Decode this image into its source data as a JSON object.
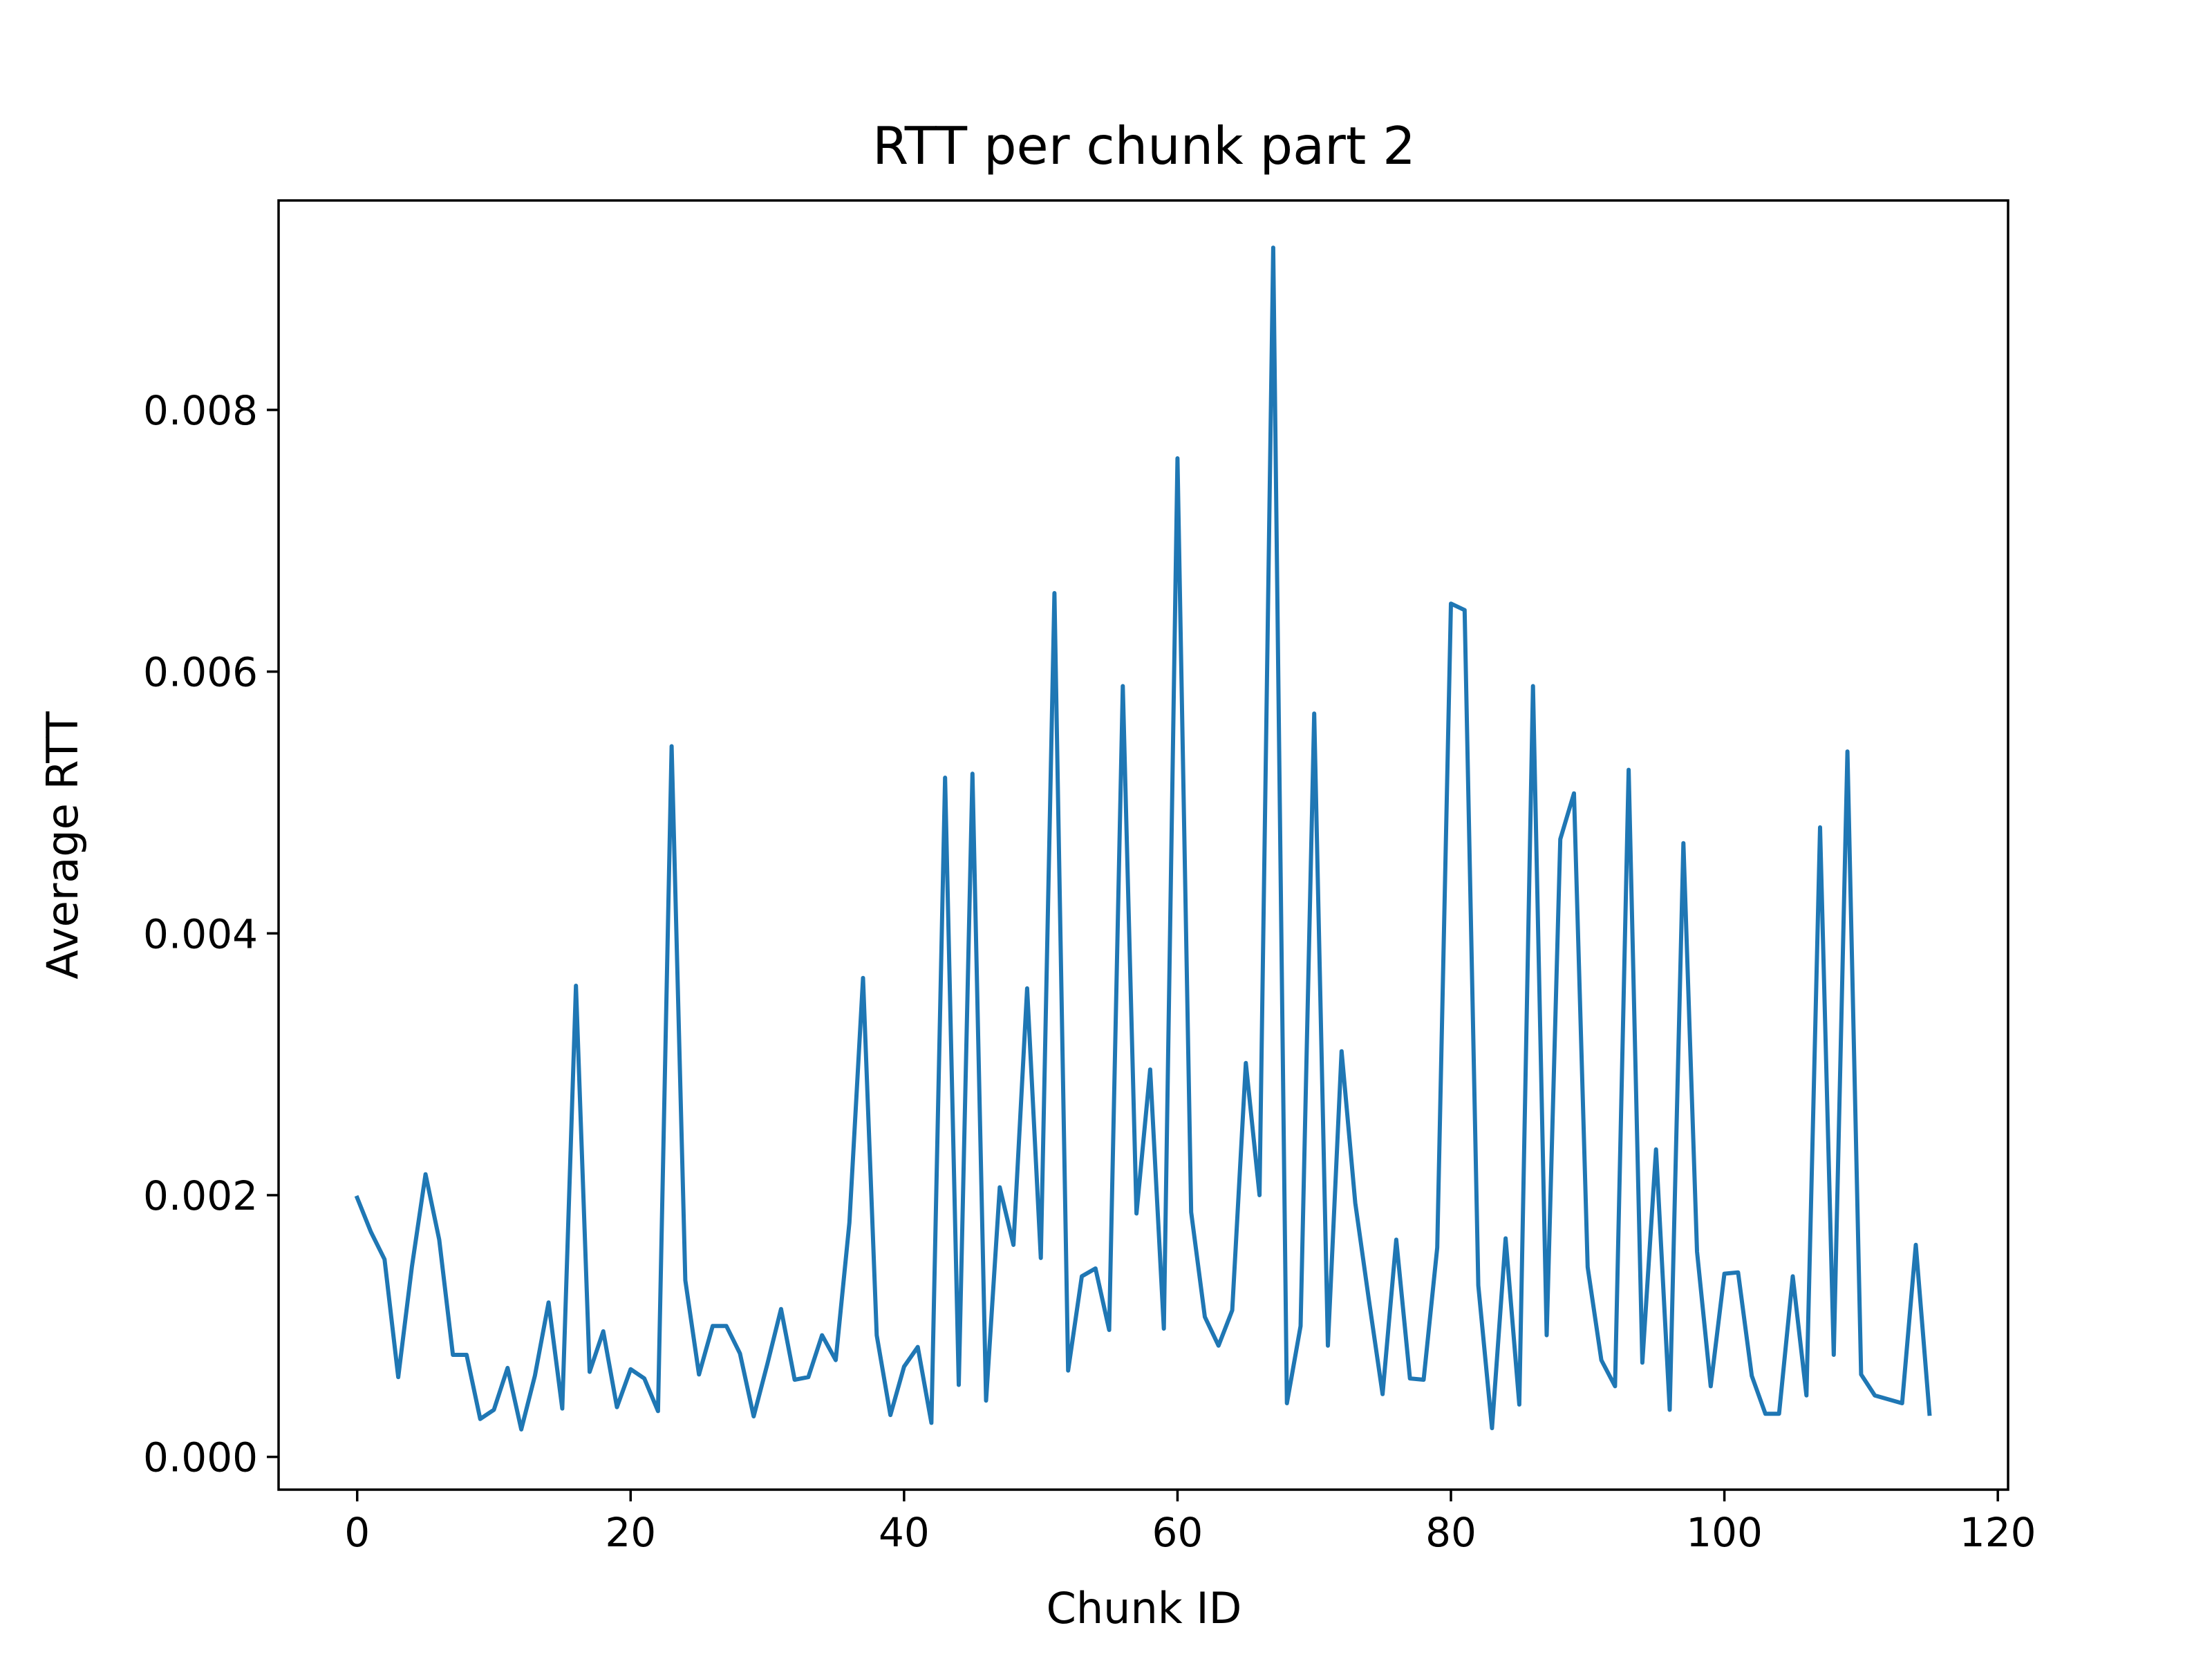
{
  "chart_data": {
    "type": "line",
    "title": "RTT per chunk part 2",
    "xlabel": "Chunk ID",
    "ylabel": "Average RTT",
    "xlim": [
      -5.75,
      120.75
    ],
    "ylim": [
      -0.00025,
      0.0096
    ],
    "xticks": [
      0,
      20,
      40,
      60,
      80,
      100,
      120
    ],
    "xtick_labels": [
      "0",
      "20",
      "40",
      "60",
      "80",
      "100",
      "120"
    ],
    "yticks": [
      0,
      0.002,
      0.004,
      0.006,
      0.008
    ],
    "ytick_labels": [
      "0.000",
      "0.002",
      "0.004",
      "0.006",
      "0.008"
    ],
    "grid": false,
    "legend": "none",
    "line_color": "#1f77b4",
    "series": [
      {
        "x": [
          0,
          1,
          2,
          3,
          4,
          5,
          6,
          7,
          8,
          9,
          10,
          11,
          12,
          13,
          14,
          15,
          16,
          17,
          18,
          19,
          20,
          21,
          22,
          23,
          24,
          25,
          26,
          27,
          28,
          29,
          30,
          31,
          32,
          33,
          34,
          35,
          36,
          37,
          38,
          39,
          40,
          41,
          42,
          43,
          44,
          45,
          46,
          47,
          48,
          49,
          50,
          51,
          52,
          53,
          54,
          55,
          56,
          57,
          58,
          59,
          60,
          61,
          62,
          63,
          64,
          65,
          66,
          67,
          68,
          69,
          70,
          71,
          72,
          73,
          74,
          75,
          76,
          77,
          78,
          79,
          80,
          81,
          82,
          83,
          84,
          85,
          86,
          87,
          88,
          89,
          90,
          91,
          92,
          93,
          94,
          95,
          96,
          97,
          98,
          99,
          100,
          101,
          102,
          103,
          104,
          105,
          106,
          107,
          108,
          109,
          110,
          111,
          112,
          113,
          114,
          115
        ],
        "values": [
          0.00198,
          0.00172,
          0.00151,
          0.00061,
          0.00145,
          0.00216,
          0.00166,
          0.00078,
          0.00078,
          0.00029,
          0.00036,
          0.00068,
          0.00021,
          0.00062,
          0.00118,
          0.00037,
          0.0036,
          0.00065,
          0.00096,
          0.00038,
          0.00067,
          0.0006,
          0.00035,
          0.00543,
          0.00135,
          0.00063,
          0.001,
          0.001,
          0.00079,
          0.00031,
          0.00071,
          0.00113,
          0.00059,
          0.00061,
          0.00093,
          0.00074,
          0.00179,
          0.00366,
          0.00093,
          0.00032,
          0.00069,
          0.00084,
          0.00026,
          0.00519,
          0.00055,
          0.00522,
          0.00043,
          0.00206,
          0.00162,
          0.00358,
          0.00152,
          0.0066,
          0.00066,
          0.00138,
          0.00144,
          0.00097,
          0.00589,
          0.00186,
          0.00296,
          0.00098,
          0.00763,
          0.00187,
          0.00107,
          0.00085,
          0.00112,
          0.00301,
          0.002,
          0.00924,
          0.00041,
          0.001,
          0.00568,
          0.00085,
          0.0031,
          0.00194,
          0.0012,
          0.00048,
          0.00166,
          0.0006,
          0.00059,
          0.0016,
          0.00652,
          0.00647,
          0.00131,
          0.00022,
          0.00167,
          0.0004,
          0.00589,
          0.00093,
          0.00472,
          0.00507,
          0.00145,
          0.00074,
          0.00054,
          0.00525,
          0.00072,
          0.00235,
          0.00036,
          0.00469,
          0.00157,
          0.00054,
          0.0014,
          0.00141,
          0.00062,
          0.00033,
          0.00033,
          0.00138,
          0.00047,
          0.00481,
          0.00078,
          0.00539,
          0.00063,
          0.00047,
          0.00044,
          0.00041,
          0.00162,
          0.00033
        ]
      }
    ]
  }
}
